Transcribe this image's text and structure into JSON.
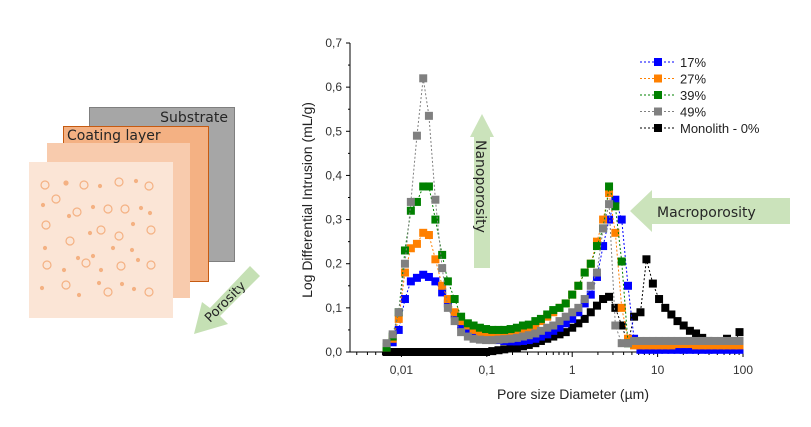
{
  "diagram": {
    "substrate_label": "Substrate",
    "coating_label": "Coating layer",
    "porosity_arrow_label": "Porosity",
    "colors": {
      "substrate": "#a6a6a6",
      "substrate_border": "#7f7f7f",
      "coating": "#f4b183",
      "coating_border": "#c55a11",
      "middle": "#f8cbad",
      "front": "#fbe5d6",
      "pore": "#f4b183",
      "arrow": "#c5e0b4"
    }
  },
  "annotations": {
    "nanoporosity": "Nanoporosity",
    "macroporosity": "Macroporosity"
  },
  "chart_data": {
    "type": "scatter",
    "title": "",
    "xlabel": "Pore size Diameter (µm)",
    "ylabel": "Log Differential Intrusion (mL/g)",
    "xscale": "log",
    "xlim": [
      0.0025,
      100
    ],
    "ylim": [
      0,
      0.7
    ],
    "xticks": [
      0.01,
      0.1,
      1,
      10,
      100
    ],
    "xtick_labels": [
      "0,01",
      "0,1",
      "1",
      "10",
      "100"
    ],
    "yticks": [
      0.0,
      0.1,
      0.2,
      0.3,
      0.4,
      0.5,
      0.6,
      0.7
    ],
    "ytick_labels": [
      "0,0",
      "0,1",
      "0,2",
      "0,3",
      "0,4",
      "0,5",
      "0,6",
      "0,7"
    ],
    "grid": false,
    "legend_position": "upper right",
    "series": [
      {
        "name": "17%",
        "color": "#0000ff",
        "marker": "square",
        "line": "dotted",
        "x": [
          0.0067,
          0.0079,
          0.0093,
          0.011,
          0.0129,
          0.0152,
          0.018,
          0.021,
          0.025,
          0.03,
          0.035,
          0.042,
          0.05,
          0.06,
          0.07,
          0.083,
          0.098,
          0.116,
          0.137,
          0.16,
          0.19,
          0.225,
          0.265,
          0.31,
          0.37,
          0.43,
          0.51,
          0.6,
          0.71,
          0.84,
          1.0,
          1.18,
          1.4,
          1.65,
          1.95,
          2.3,
          2.7,
          3.2,
          3.8,
          4.5,
          5.3,
          6.3,
          7.4,
          8.8,
          10.4,
          12.3,
          14.5,
          17.1,
          20.2,
          23.9,
          28.2,
          33.3,
          39.4,
          46.5,
          55,
          65,
          77,
          91
        ],
        "y": [
          0.012,
          0.022,
          0.05,
          0.12,
          0.16,
          0.168,
          0.175,
          0.17,
          0.16,
          0.135,
          0.11,
          0.085,
          0.06,
          0.05,
          0.04,
          0.035,
          0.03,
          0.028,
          0.027,
          0.025,
          0.024,
          0.024,
          0.025,
          0.027,
          0.03,
          0.035,
          0.04,
          0.048,
          0.055,
          0.065,
          0.075,
          0.09,
          0.11,
          0.13,
          0.17,
          0.24,
          0.3,
          0.345,
          0.3,
          0.15,
          0.03,
          0.005,
          0.005,
          0.005,
          0.005,
          0.005,
          0.005,
          0.005,
          0.005,
          0.005,
          0.005,
          0.005,
          0.005,
          0.005,
          0.005,
          0.005,
          0.005,
          0.005
        ]
      },
      {
        "name": "27%",
        "color": "#ff8000",
        "marker": "square",
        "line": "dotted",
        "x": [
          0.0067,
          0.0079,
          0.0093,
          0.011,
          0.0129,
          0.0152,
          0.018,
          0.021,
          0.025,
          0.03,
          0.035,
          0.042,
          0.05,
          0.06,
          0.07,
          0.083,
          0.098,
          0.116,
          0.137,
          0.16,
          0.19,
          0.225,
          0.265,
          0.31,
          0.37,
          0.43,
          0.51,
          0.6,
          0.71,
          0.84,
          1.0,
          1.18,
          1.4,
          1.65,
          1.95,
          2.3,
          2.7,
          3.2,
          3.8,
          4.5,
          5.3,
          6.3,
          7.4,
          8.8,
          10.4,
          12.3,
          14.5,
          17.1,
          20.2,
          23.9,
          28.2,
          33.3,
          39.4,
          46.5,
          55,
          65,
          77,
          91
        ],
        "y": [
          0.01,
          0.03,
          0.075,
          0.18,
          0.235,
          0.245,
          0.27,
          0.265,
          0.21,
          0.15,
          0.12,
          0.09,
          0.07,
          0.06,
          0.05,
          0.045,
          0.042,
          0.04,
          0.04,
          0.041,
          0.042,
          0.045,
          0.05,
          0.055,
          0.06,
          0.07,
          0.08,
          0.09,
          0.1,
          0.11,
          0.13,
          0.15,
          0.18,
          0.2,
          0.25,
          0.3,
          0.36,
          0.27,
          0.1,
          0.03,
          0.015,
          0.015,
          0.015,
          0.015,
          0.015,
          0.015,
          0.015,
          0.018,
          0.018,
          0.018,
          0.015,
          0.015,
          0.015,
          0.015,
          0.015,
          0.015,
          0.015,
          0.015
        ]
      },
      {
        "name": "39%",
        "color": "#008000",
        "marker": "square",
        "line": "dotted",
        "x": [
          0.0067,
          0.0079,
          0.0093,
          0.011,
          0.0129,
          0.0152,
          0.018,
          0.021,
          0.025,
          0.03,
          0.035,
          0.042,
          0.05,
          0.06,
          0.07,
          0.083,
          0.098,
          0.116,
          0.137,
          0.16,
          0.19,
          0.225,
          0.265,
          0.31,
          0.37,
          0.43,
          0.51,
          0.6,
          0.71,
          0.84,
          1.0,
          1.18,
          1.4,
          1.65,
          1.95,
          2.3,
          2.7,
          3.2,
          3.8,
          4.5
        ],
        "y": [
          0.01,
          0.035,
          0.09,
          0.23,
          0.32,
          0.34,
          0.375,
          0.375,
          0.3,
          0.22,
          0.16,
          0.12,
          0.08,
          0.065,
          0.06,
          0.055,
          0.052,
          0.05,
          0.05,
          0.05,
          0.052,
          0.055,
          0.06,
          0.062,
          0.07,
          0.075,
          0.085,
          0.095,
          0.1,
          0.11,
          0.13,
          0.15,
          0.18,
          0.2,
          0.24,
          0.28,
          0.375,
          0.33,
          0.205,
          0.02
        ]
      },
      {
        "name": "49%",
        "color": "#808080",
        "marker": "square",
        "line": "dotted",
        "x": [
          0.0067,
          0.0079,
          0.0093,
          0.011,
          0.0129,
          0.0152,
          0.018,
          0.021,
          0.025,
          0.03,
          0.035,
          0.042,
          0.05,
          0.06,
          0.07,
          0.083,
          0.098,
          0.116,
          0.137,
          0.16,
          0.19,
          0.225,
          0.265,
          0.31,
          0.37,
          0.43,
          0.51,
          0.6,
          0.71,
          0.84,
          1.0,
          1.18,
          1.4,
          1.65,
          1.95,
          2.3,
          2.7,
          3.2,
          3.8,
          4.5,
          5.3,
          6.3,
          7.4,
          8.8,
          10.4,
          12.3,
          14.5,
          17.1,
          20.2,
          23.9,
          28.2,
          33.3,
          39.4,
          46.5,
          55,
          65,
          77,
          91
        ],
        "y": [
          0.02,
          0.04,
          0.09,
          0.2,
          0.34,
          0.49,
          0.62,
          0.535,
          0.345,
          0.19,
          0.1,
          0.07,
          0.045,
          0.035,
          0.03,
          0.028,
          0.027,
          0.027,
          0.028,
          0.029,
          0.03,
          0.032,
          0.035,
          0.038,
          0.042,
          0.048,
          0.055,
          0.06,
          0.07,
          0.08,
          0.09,
          0.1,
          0.12,
          0.15,
          0.18,
          0.28,
          0.335,
          0.06,
          0.02,
          0.02,
          0.025,
          0.025,
          0.025,
          0.025,
          0.025,
          0.025,
          0.025,
          0.025,
          0.025,
          0.025,
          0.025,
          0.025,
          0.025,
          0.025,
          0.025,
          0.025,
          0.025,
          0.025
        ]
      },
      {
        "name": "Monolith - 0%",
        "color": "#000000",
        "marker": "square",
        "line": "dotted",
        "x": [
          0.0067,
          0.0079,
          0.0093,
          0.011,
          0.0129,
          0.0152,
          0.018,
          0.021,
          0.025,
          0.03,
          0.035,
          0.042,
          0.05,
          0.06,
          0.07,
          0.083,
          0.098,
          0.116,
          0.137,
          0.16,
          0.19,
          0.225,
          0.265,
          0.31,
          0.37,
          0.43,
          0.51,
          0.6,
          0.71,
          0.84,
          1.0,
          1.18,
          1.4,
          1.65,
          1.95,
          2.3,
          2.7,
          3.2,
          3.8,
          4.5,
          5.3,
          6.3,
          7.4,
          8.8,
          10.4,
          12.3,
          14.5,
          17.1,
          20.2,
          23.9,
          28.2,
          33.3,
          39.4,
          46.5,
          55,
          65,
          77,
          91
        ],
        "y": [
          0.0,
          0.0,
          0.0,
          0.0,
          0.0,
          0.0,
          0.0,
          0.0,
          0.0,
          0.0,
          0.0,
          0.0,
          0.0,
          0.0,
          0.0,
          0.0,
          0.0,
          0.002,
          0.004,
          0.006,
          0.008,
          0.01,
          0.013,
          0.016,
          0.02,
          0.025,
          0.03,
          0.035,
          0.04,
          0.045,
          0.055,
          0.065,
          0.075,
          0.09,
          0.105,
          0.12,
          0.125,
          0.1,
          0.06,
          0.02,
          0.08,
          0.09,
          0.21,
          0.155,
          0.12,
          0.1,
          0.085,
          0.07,
          0.06,
          0.048,
          0.042,
          0.032,
          0.025,
          0.02,
          0.01,
          0.03,
          0.015,
          0.045
        ]
      }
    ]
  }
}
